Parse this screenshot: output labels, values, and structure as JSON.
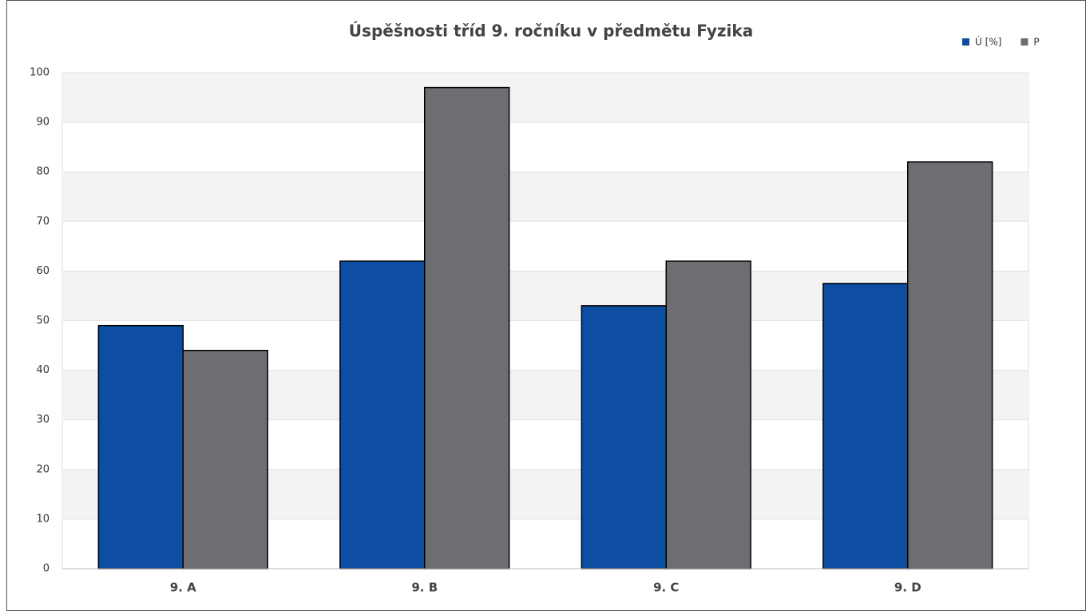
{
  "chart_data": {
    "type": "bar",
    "title": "Úspěšnosti tříd 9. ročníku v předmětu Fyzika",
    "categories": [
      "9. A",
      "9. B",
      "9. C",
      "9. D"
    ],
    "series": [
      {
        "name": "Ú [%]",
        "color": "#0d4ea3",
        "values": [
          49,
          62,
          53,
          57.5
        ]
      },
      {
        "name": "P",
        "color": "#6d6e71",
        "values": [
          44,
          97,
          62,
          82
        ]
      }
    ],
    "ylim": [
      0,
      100
    ],
    "yticks": [
      0,
      10,
      20,
      30,
      40,
      50,
      60,
      70,
      80,
      90,
      100
    ],
    "grid": true,
    "legend": "top-right"
  }
}
